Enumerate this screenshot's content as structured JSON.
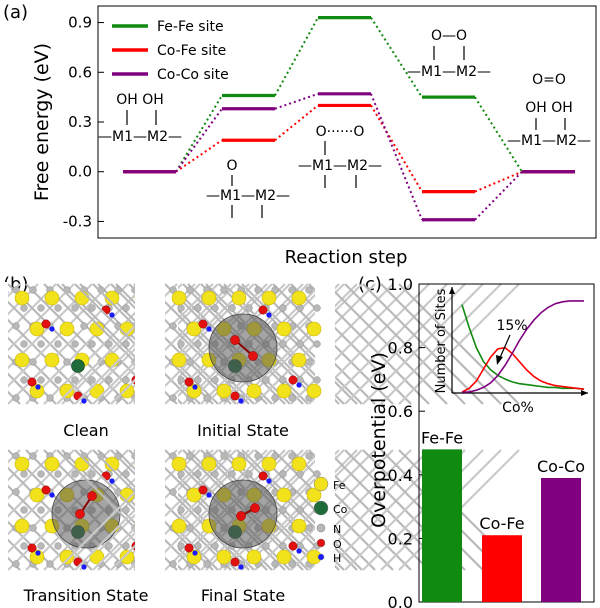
{
  "panels": {
    "a": "(a)",
    "b": "(b)",
    "c": "(c)"
  },
  "colors": {
    "fefe": "#108a10",
    "cofe": "#ff0000",
    "coco": "#800080",
    "fe_atom": "#f2e21c",
    "co_atom": "#1f6b3a",
    "n_atom": "#b8b8b8",
    "o_atom": "#e31010",
    "h_atom": "#1a1aff"
  },
  "structures": {
    "s1": {
      "line1": "OH  OH",
      "line2": "—M1—M2—"
    },
    "s2": {
      "line1": "O",
      "line2": "—M1—M2—"
    },
    "s3": {
      "line1": "O······O",
      "line2": "—M1—M2—"
    },
    "s4": {
      "line1": "O—O",
      "line2": "—M1—M2—"
    },
    "s5": {
      "line0": "O=O",
      "line1": "OH  OH",
      "line2": "—M1—M2—"
    }
  },
  "snapshots": {
    "labels": [
      "Clean",
      "Initial State",
      "Transition State",
      "Final State"
    ],
    "legend": [
      "Fe",
      "Co",
      "N",
      "O",
      "H"
    ]
  },
  "chart_data": [
    {
      "panel": "a",
      "type": "line",
      "description_style": "free energy step diagram with level bars and dotted connectors",
      "xlabel": "Reaction step",
      "ylabel": "Free energy (eV)",
      "ylim": [
        -0.4,
        1.0
      ],
      "yticks": [
        "-0.3",
        "0.0",
        "0.3",
        "0.6",
        "0.9"
      ],
      "ytick_values": [
        -0.3,
        0.0,
        0.3,
        0.6,
        0.9
      ],
      "steps": [
        1,
        2,
        3,
        4,
        5
      ],
      "legend_position": "top-left",
      "series": [
        {
          "name": "Fe-Fe site",
          "color": "#108a10",
          "values": [
            0.0,
            0.46,
            0.93,
            0.45,
            0.0
          ]
        },
        {
          "name": "Co-Fe site",
          "color": "#ff0000",
          "values": [
            0.0,
            0.19,
            0.4,
            -0.12,
            0.0
          ]
        },
        {
          "name": "Co-Co site",
          "color": "#800080",
          "values": [
            0.0,
            0.38,
            0.47,
            -0.29,
            0.0
          ]
        }
      ]
    },
    {
      "panel": "c",
      "type": "bar",
      "ylabel": "Overpotential (eV)",
      "ylim": [
        0.0,
        1.0
      ],
      "yticks": [
        "0.0",
        "0.2",
        "0.4",
        "0.6",
        "0.8",
        "1.0"
      ],
      "ytick_values": [
        0.0,
        0.2,
        0.4,
        0.6,
        0.8,
        1.0
      ],
      "categories": [
        "Fe-Fe",
        "Co-Fe",
        "Co-Co"
      ],
      "values": [
        0.48,
        0.21,
        0.39
      ],
      "colors": [
        "#108a10",
        "#ff0000",
        "#800080"
      ]
    },
    {
      "panel": "c-inset",
      "type": "line",
      "xlabel": "Co%",
      "ylabel": "Number of Sites",
      "annotation": "15%",
      "x": [
        0,
        5,
        10,
        15,
        20,
        25,
        30,
        35,
        40,
        45,
        50,
        55,
        60,
        65,
        70,
        75,
        80,
        85
      ],
      "series": [
        {
          "color": "#108a10",
          "values": [
            0.95,
            0.7,
            0.48,
            0.33,
            0.24,
            0.18,
            0.14,
            0.11,
            0.09,
            0.08,
            0.07,
            0.06,
            0.05,
            0.05,
            0.04,
            0.04,
            0.04,
            0.03
          ]
        },
        {
          "color": "#ff0000",
          "values": [
            0.0,
            0.04,
            0.12,
            0.25,
            0.38,
            0.47,
            0.48,
            0.42,
            0.33,
            0.24,
            0.17,
            0.12,
            0.09,
            0.07,
            0.06,
            0.05,
            0.04,
            0.03
          ]
        },
        {
          "color": "#800080",
          "values": [
            0.0,
            0.0,
            0.02,
            0.05,
            0.1,
            0.18,
            0.29,
            0.42,
            0.56,
            0.68,
            0.78,
            0.86,
            0.92,
            0.96,
            0.98,
            0.99,
            0.99,
            0.99
          ]
        }
      ]
    }
  ]
}
